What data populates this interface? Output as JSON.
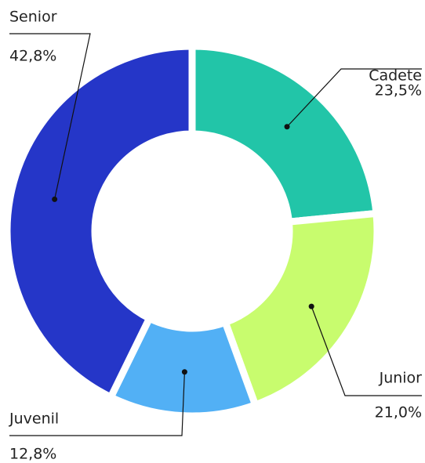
{
  "chart_data": {
    "type": "donut",
    "categories": [
      "Cadete",
      "Junior",
      "Juvenil",
      "Senior"
    ],
    "values": [
      23.5,
      21.0,
      12.8,
      42.8
    ],
    "value_labels": [
      "23,5%",
      "21,0%",
      "12,8%",
      "42,8%"
    ],
    "colors": [
      "#22c5a8",
      "#c8fc6e",
      "#52b0f5",
      "#2536c8"
    ]
  }
}
